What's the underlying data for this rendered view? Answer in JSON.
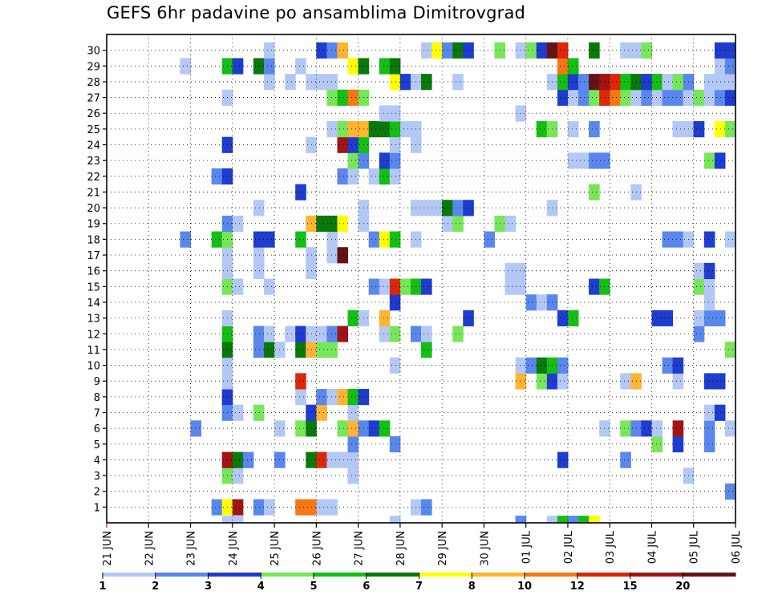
{
  "title": "GEFS 6hr padavine po ansamblima Dimitrovgrad",
  "chart_data": {
    "type": "heatmap",
    "title": "GEFS 6hr padavine po ansamblima Dimitrovgrad",
    "y_ticks": [
      "1",
      "2",
      "3",
      "4",
      "5",
      "6",
      "7",
      "8",
      "9",
      "10",
      "11",
      "12",
      "13",
      "14",
      "15",
      "16",
      "17",
      "18",
      "19",
      "20",
      "21",
      "22",
      "23",
      "24",
      "25",
      "26",
      "27",
      "28",
      "29",
      "30"
    ],
    "x_ticks": [
      "21 JUN",
      "22 JUN",
      "23 JUN",
      "24 JUN",
      "25 JUN",
      "26 JUN",
      "27 JUN",
      "28 JUN",
      "29 JUN",
      "30 JUN",
      "01 JUL",
      "02 JUL",
      "03 JUL",
      "04 JUL",
      "05 JUL",
      "06 JUL"
    ],
    "columns": 60,
    "grid": true,
    "legend": {
      "placement": "bottom",
      "labels": [
        "1",
        "2",
        "3",
        "4",
        "5",
        "6",
        "7",
        "8",
        "10",
        "12",
        "15",
        "20"
      ],
      "colors": [
        "#b4c8f5",
        "#5a87eb",
        "#1e3ccd",
        "#78e65a",
        "#14be14",
        "#0a780a",
        "#ffff00",
        "#ffb432",
        "#f57814",
        "#dc280a",
        "#a01414",
        "#641414"
      ]
    },
    "cells": [
      [
        1,
        10,
        2
      ],
      [
        1,
        11,
        7
      ],
      [
        1,
        12,
        11
      ],
      [
        1,
        14,
        2
      ],
      [
        1,
        15,
        1
      ],
      [
        1,
        18,
        9
      ],
      [
        1,
        19,
        9
      ],
      [
        1,
        20,
        1
      ],
      [
        1,
        21,
        1
      ],
      [
        1,
        29,
        1
      ],
      [
        1,
        30,
        2
      ],
      [
        2,
        59,
        2
      ],
      [
        3,
        11,
        4
      ],
      [
        3,
        12,
        1
      ],
      [
        3,
        23,
        1
      ],
      [
        3,
        55,
        1
      ],
      [
        4,
        11,
        11
      ],
      [
        4,
        12,
        6
      ],
      [
        4,
        13,
        2
      ],
      [
        4,
        16,
        2
      ],
      [
        4,
        19,
        6
      ],
      [
        4,
        20,
        10
      ],
      [
        4,
        21,
        1
      ],
      [
        4,
        22,
        1
      ],
      [
        4,
        23,
        1
      ],
      [
        4,
        43,
        3
      ],
      [
        4,
        49,
        2
      ],
      [
        5,
        23,
        2
      ],
      [
        5,
        27,
        2
      ],
      [
        5,
        52,
        4
      ],
      [
        5,
        54,
        3
      ],
      [
        5,
        57,
        2
      ],
      [
        6,
        8,
        2
      ],
      [
        6,
        16,
        1
      ],
      [
        6,
        18,
        4
      ],
      [
        6,
        19,
        6
      ],
      [
        6,
        22,
        4
      ],
      [
        6,
        23,
        8
      ],
      [
        6,
        24,
        2
      ],
      [
        6,
        25,
        3
      ],
      [
        6,
        26,
        5
      ],
      [
        6,
        47,
        1
      ],
      [
        6,
        49,
        4
      ],
      [
        6,
        50,
        2
      ],
      [
        6,
        51,
        3
      ],
      [
        6,
        52,
        1
      ],
      [
        6,
        54,
        11
      ],
      [
        6,
        57,
        2
      ],
      [
        6,
        59,
        1
      ],
      [
        7,
        11,
        2
      ],
      [
        7,
        12,
        1
      ],
      [
        7,
        14,
        4
      ],
      [
        7,
        19,
        3
      ],
      [
        7,
        20,
        8
      ],
      [
        7,
        23,
        1
      ],
      [
        7,
        57,
        1
      ],
      [
        7,
        58,
        3
      ],
      [
        8,
        11,
        3
      ],
      [
        8,
        18,
        1
      ],
      [
        8,
        20,
        2
      ],
      [
        8,
        21,
        1
      ],
      [
        8,
        22,
        8
      ],
      [
        8,
        23,
        5
      ],
      [
        8,
        24,
        3
      ],
      [
        9,
        11,
        1
      ],
      [
        9,
        18,
        10
      ],
      [
        9,
        39,
        8
      ],
      [
        9,
        41,
        4
      ],
      [
        9,
        42,
        3
      ],
      [
        9,
        43,
        1
      ],
      [
        9,
        49,
        1
      ],
      [
        9,
        50,
        8
      ],
      [
        9,
        54,
        1
      ],
      [
        9,
        57,
        3
      ],
      [
        9,
        58,
        3
      ],
      [
        10,
        11,
        1
      ],
      [
        10,
        27,
        1
      ],
      [
        10,
        39,
        1
      ],
      [
        10,
        40,
        2
      ],
      [
        10,
        41,
        6
      ],
      [
        10,
        42,
        5
      ],
      [
        10,
        43,
        2
      ],
      [
        10,
        53,
        2
      ],
      [
        10,
        54,
        3
      ],
      [
        11,
        11,
        6
      ],
      [
        11,
        14,
        2
      ],
      [
        11,
        15,
        6
      ],
      [
        11,
        16,
        1
      ],
      [
        11,
        18,
        6
      ],
      [
        11,
        19,
        8
      ],
      [
        11,
        20,
        4
      ],
      [
        11,
        21,
        4
      ],
      [
        11,
        30,
        5
      ],
      [
        11,
        59,
        4
      ],
      [
        12,
        11,
        5
      ],
      [
        12,
        14,
        2
      ],
      [
        12,
        15,
        1
      ],
      [
        12,
        17,
        1
      ],
      [
        12,
        18,
        3
      ],
      [
        12,
        19,
        1
      ],
      [
        12,
        20,
        1
      ],
      [
        12,
        21,
        2
      ],
      [
        12,
        22,
        11
      ],
      [
        12,
        26,
        1
      ],
      [
        12,
        27,
        4
      ],
      [
        12,
        29,
        2
      ],
      [
        12,
        30,
        1
      ],
      [
        12,
        33,
        4
      ],
      [
        12,
        56,
        2
      ],
      [
        13,
        11,
        1
      ],
      [
        13,
        23,
        5
      ],
      [
        13,
        24,
        1
      ],
      [
        13,
        26,
        8
      ],
      [
        13,
        34,
        3
      ],
      [
        13,
        43,
        3
      ],
      [
        13,
        44,
        5
      ],
      [
        13,
        52,
        3
      ],
      [
        13,
        53,
        3
      ],
      [
        13,
        56,
        1
      ],
      [
        13,
        57,
        2
      ],
      [
        13,
        58,
        2
      ],
      [
        14,
        27,
        3
      ],
      [
        14,
        40,
        2
      ],
      [
        14,
        41,
        1
      ],
      [
        14,
        42,
        2
      ],
      [
        14,
        57,
        1
      ],
      [
        15,
        11,
        4
      ],
      [
        15,
        12,
        1
      ],
      [
        15,
        15,
        1
      ],
      [
        15,
        25,
        2
      ],
      [
        15,
        26,
        1
      ],
      [
        15,
        27,
        10
      ],
      [
        15,
        28,
        4
      ],
      [
        15,
        29,
        5
      ],
      [
        15,
        30,
        3
      ],
      [
        15,
        38,
        1
      ],
      [
        15,
        39,
        1
      ],
      [
        15,
        46,
        3
      ],
      [
        15,
        47,
        5
      ],
      [
        15,
        56,
        4
      ],
      [
        15,
        57,
        1
      ],
      [
        16,
        11,
        1
      ],
      [
        16,
        14,
        1
      ],
      [
        16,
        19,
        1
      ],
      [
        16,
        38,
        1
      ],
      [
        16,
        39,
        1
      ],
      [
        16,
        56,
        1
      ],
      [
        16,
        57,
        3
      ],
      [
        17,
        11,
        1
      ],
      [
        17,
        14,
        1
      ],
      [
        17,
        19,
        1
      ],
      [
        17,
        21,
        1
      ],
      [
        17,
        22,
        12
      ],
      [
        18,
        7,
        2
      ],
      [
        18,
        10,
        5
      ],
      [
        18,
        11,
        4
      ],
      [
        18,
        14,
        3
      ],
      [
        18,
        15,
        3
      ],
      [
        18,
        18,
        5
      ],
      [
        18,
        21,
        1
      ],
      [
        18,
        25,
        2
      ],
      [
        18,
        26,
        7
      ],
      [
        18,
        27,
        5
      ],
      [
        18,
        29,
        1
      ],
      [
        18,
        36,
        2
      ],
      [
        18,
        53,
        2
      ],
      [
        18,
        54,
        2
      ],
      [
        18,
        55,
        1
      ],
      [
        18,
        57,
        3
      ],
      [
        18,
        59,
        1
      ],
      [
        19,
        11,
        2
      ],
      [
        19,
        12,
        1
      ],
      [
        19,
        19,
        8
      ],
      [
        19,
        20,
        6
      ],
      [
        19,
        21,
        6
      ],
      [
        19,
        22,
        7
      ],
      [
        19,
        24,
        1
      ],
      [
        19,
        32,
        1
      ],
      [
        19,
        33,
        4
      ],
      [
        19,
        37,
        4
      ],
      [
        19,
        38,
        1
      ],
      [
        20,
        14,
        1
      ],
      [
        20,
        24,
        1
      ],
      [
        20,
        29,
        1
      ],
      [
        20,
        30,
        1
      ],
      [
        20,
        31,
        1
      ],
      [
        20,
        32,
        6
      ],
      [
        20,
        33,
        2
      ],
      [
        20,
        34,
        3
      ],
      [
        20,
        42,
        1
      ],
      [
        21,
        18,
        3
      ],
      [
        21,
        46,
        4
      ],
      [
        21,
        50,
        1
      ],
      [
        22,
        10,
        2
      ],
      [
        22,
        11,
        3
      ],
      [
        22,
        22,
        2
      ],
      [
        22,
        23,
        1
      ],
      [
        22,
        25,
        1
      ],
      [
        22,
        26,
        5
      ],
      [
        22,
        27,
        1
      ],
      [
        23,
        23,
        4
      ],
      [
        23,
        24,
        2
      ],
      [
        23,
        26,
        3
      ],
      [
        23,
        27,
        2
      ],
      [
        23,
        44,
        1
      ],
      [
        23,
        45,
        1
      ],
      [
        23,
        46,
        2
      ],
      [
        23,
        47,
        2
      ],
      [
        23,
        57,
        4
      ],
      [
        23,
        58,
        3
      ],
      [
        24,
        11,
        3
      ],
      [
        24,
        19,
        1
      ],
      [
        24,
        22,
        11
      ],
      [
        24,
        23,
        3
      ],
      [
        24,
        24,
        5
      ],
      [
        24,
        27,
        1
      ],
      [
        24,
        29,
        1
      ],
      [
        25,
        21,
        1
      ],
      [
        25,
        22,
        4
      ],
      [
        25,
        23,
        8
      ],
      [
        25,
        24,
        8
      ],
      [
        25,
        25,
        6
      ],
      [
        25,
        26,
        6
      ],
      [
        25,
        27,
        5
      ],
      [
        25,
        28,
        1
      ],
      [
        25,
        29,
        1
      ],
      [
        25,
        41,
        5
      ],
      [
        25,
        42,
        4
      ],
      [
        25,
        44,
        1
      ],
      [
        25,
        46,
        2
      ],
      [
        25,
        54,
        1
      ],
      [
        25,
        55,
        1
      ],
      [
        25,
        56,
        3
      ],
      [
        25,
        58,
        7
      ],
      [
        25,
        59,
        4
      ],
      [
        26,
        26,
        1
      ],
      [
        26,
        27,
        1
      ],
      [
        26,
        39,
        1
      ],
      [
        27,
        11,
        1
      ],
      [
        27,
        21,
        4
      ],
      [
        27,
        22,
        5
      ],
      [
        27,
        23,
        9
      ],
      [
        27,
        24,
        4
      ],
      [
        27,
        43,
        3
      ],
      [
        27,
        44,
        1
      ],
      [
        27,
        45,
        2
      ],
      [
        27,
        46,
        4
      ],
      [
        27,
        47,
        10
      ],
      [
        27,
        48,
        9
      ],
      [
        27,
        49,
        4
      ],
      [
        27,
        50,
        1
      ],
      [
        27,
        51,
        2
      ],
      [
        27,
        52,
        1
      ],
      [
        27,
        53,
        2
      ],
      [
        27,
        54,
        2
      ],
      [
        27,
        55,
        1
      ],
      [
        27,
        56,
        4
      ],
      [
        27,
        57,
        1
      ],
      [
        27,
        58,
        2
      ],
      [
        27,
        59,
        3
      ],
      [
        28,
        15,
        1
      ],
      [
        28,
        17,
        1
      ],
      [
        28,
        19,
        1
      ],
      [
        28,
        20,
        1
      ],
      [
        28,
        21,
        1
      ],
      [
        28,
        27,
        7
      ],
      [
        28,
        28,
        3
      ],
      [
        28,
        29,
        1
      ],
      [
        28,
        30,
        6
      ],
      [
        28,
        33,
        1
      ],
      [
        28,
        42,
        1
      ],
      [
        28,
        43,
        5
      ],
      [
        28,
        44,
        3
      ],
      [
        28,
        45,
        2
      ],
      [
        28,
        46,
        12
      ],
      [
        28,
        47,
        11
      ],
      [
        28,
        48,
        10
      ],
      [
        28,
        49,
        5
      ],
      [
        28,
        50,
        6
      ],
      [
        28,
        51,
        3
      ],
      [
        28,
        52,
        5
      ],
      [
        28,
        53,
        1
      ],
      [
        28,
        54,
        4
      ],
      [
        28,
        55,
        2
      ],
      [
        28,
        57,
        1
      ],
      [
        28,
        58,
        1
      ],
      [
        28,
        59,
        1
      ],
      [
        29,
        7,
        1
      ],
      [
        29,
        11,
        5
      ],
      [
        29,
        12,
        3
      ],
      [
        29,
        14,
        6
      ],
      [
        29,
        15,
        2
      ],
      [
        29,
        18,
        1
      ],
      [
        29,
        23,
        7
      ],
      [
        29,
        24,
        6
      ],
      [
        29,
        26,
        5
      ],
      [
        29,
        27,
        6
      ],
      [
        29,
        43,
        9
      ],
      [
        29,
        44,
        5
      ],
      [
        29,
        58,
        1
      ],
      [
        29,
        59,
        2
      ],
      [
        30,
        15,
        1
      ],
      [
        30,
        20,
        3
      ],
      [
        30,
        21,
        2
      ],
      [
        30,
        22,
        8
      ],
      [
        30,
        30,
        1
      ],
      [
        30,
        31,
        7
      ],
      [
        30,
        32,
        2
      ],
      [
        30,
        33,
        6
      ],
      [
        30,
        34,
        3
      ],
      [
        30,
        37,
        4
      ],
      [
        30,
        39,
        1
      ],
      [
        30,
        40,
        4
      ],
      [
        30,
        41,
        3
      ],
      [
        30,
        42,
        12
      ],
      [
        30,
        43,
        10
      ],
      [
        30,
        46,
        6
      ],
      [
        30,
        49,
        1
      ],
      [
        30,
        50,
        1
      ],
      [
        30,
        51,
        4
      ],
      [
        30,
        58,
        3
      ],
      [
        30,
        59,
        3
      ]
    ],
    "bottom_strip": [
      [
        11,
        1
      ],
      [
        12,
        1
      ],
      [
        27,
        1
      ],
      [
        39,
        2
      ],
      [
        42,
        1
      ],
      [
        43,
        5
      ],
      [
        44,
        2
      ],
      [
        45,
        5
      ],
      [
        46,
        7
      ]
    ]
  }
}
